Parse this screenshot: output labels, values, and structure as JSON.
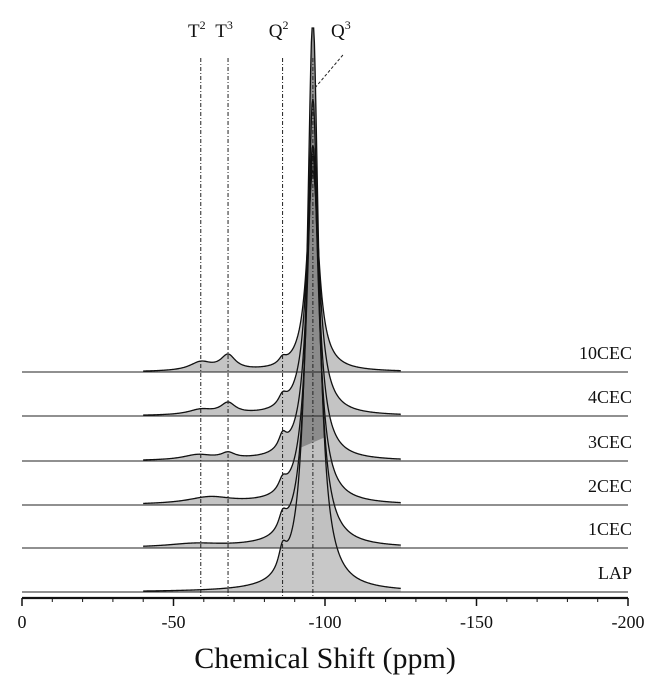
{
  "chart_data": {
    "type": "line",
    "xlabel": "Chemical Shift (ppm)",
    "xlim": [
      0,
      -200
    ],
    "x_ticks": [
      {
        "value": 0,
        "label": "0"
      },
      {
        "value": -50,
        "label": "-50"
      },
      {
        "value": -100,
        "label": "-100"
      },
      {
        "value": -150,
        "label": "-150"
      },
      {
        "value": -200,
        "label": "-200"
      }
    ],
    "reference_lines": [
      {
        "name": "T2",
        "label": "T",
        "sup": "2",
        "x": -59
      },
      {
        "name": "T3",
        "label": "T",
        "sup": "3",
        "x": -68
      },
      {
        "name": "Q2",
        "label": "Q",
        "sup": "2",
        "x": -86
      },
      {
        "name": "Q3",
        "label": "Q",
        "sup": "3",
        "x": -96
      }
    ],
    "series": [
      {
        "name": "LAP",
        "peaks": [
          {
            "x": -86,
            "h": 0.038,
            "w": 1.6
          },
          {
            "x": -96,
            "h": 1.0,
            "w": 2.3
          }
        ]
      },
      {
        "name": "1CEC",
        "peaks": [
          {
            "x": -57,
            "h": 0.006,
            "w": 11
          },
          {
            "x": -86,
            "h": 0.028,
            "w": 1.6
          },
          {
            "x": -96,
            "h": 0.78,
            "w": 2.3
          }
        ]
      },
      {
        "name": "2CEC",
        "peaks": [
          {
            "x": -62,
            "h": 0.012,
            "w": 9
          },
          {
            "x": -86,
            "h": 0.02,
            "w": 1.6
          },
          {
            "x": -96,
            "h": 0.62,
            "w": 2.3
          }
        ]
      },
      {
        "name": "3CEC",
        "peaks": [
          {
            "x": -58,
            "h": 0.009,
            "w": 6
          },
          {
            "x": -68,
            "h": 0.01,
            "w": 2.8
          },
          {
            "x": -86,
            "h": 0.025,
            "w": 1.6
          },
          {
            "x": -96,
            "h": 0.53,
            "w": 2.3
          }
        ]
      },
      {
        "name": "4CEC",
        "peaks": [
          {
            "x": -59,
            "h": 0.009,
            "w": 5
          },
          {
            "x": -68,
            "h": 0.019,
            "w": 3
          },
          {
            "x": -86,
            "h": 0.018,
            "w": 1.7
          },
          {
            "x": -96,
            "h": 0.47,
            "w": 2.3
          }
        ]
      },
      {
        "name": "10CEC",
        "peaks": [
          {
            "x": -59,
            "h": 0.015,
            "w": 4.5
          },
          {
            "x": -68,
            "h": 0.026,
            "w": 3
          },
          {
            "x": -86,
            "h": 0.011,
            "w": 1.5
          },
          {
            "x": -96,
            "h": 0.35,
            "w": 2.3
          }
        ]
      }
    ]
  }
}
